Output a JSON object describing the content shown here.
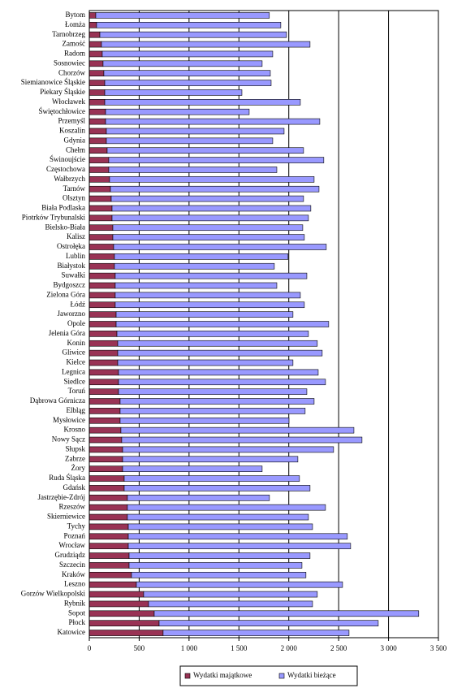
{
  "chart_data": {
    "type": "stacked-bar-horizontal",
    "categories": [
      "Bytom",
      "Łomża",
      "Tarnobrzeg",
      "Zamość",
      "Radom",
      "Sosnowiec",
      "Chorzów",
      "Siemianowice Śląskie",
      "Piekary Śląskie",
      "Włocławek",
      "Świętochłowice",
      "Przemyśl",
      "Koszalin",
      "Gdynia",
      "Chełm",
      "Świnoujście",
      "Częstochowa",
      "Wałbrzych",
      "Tarnów",
      "Olsztyn",
      "Biała Podlaska",
      "Piotrków Trybunalski",
      "Bielsko-Biała",
      "Kalisz",
      "Ostrołęka",
      "Lublin",
      "Białystok",
      "Suwałki",
      "Bydgoszcz",
      "Zielona Góra",
      "Łódź",
      "Jaworzno",
      "Opole",
      "Jelenia Góra",
      "Konin",
      "Gliwice",
      "Kielce",
      "Legnica",
      "Siedlce",
      "Toruń",
      "Dąbrowa Górnicza",
      "Elbląg",
      "Mysłowice",
      "Krosno",
      "Nowy Sącz",
      "Słupsk",
      "Zabrze",
      "Żory",
      "Ruda Śląska",
      "Gdańsk",
      "Jastrzębie-Zdrój",
      "Rzeszów",
      "Skierniewice",
      "Tychy",
      "Poznań",
      "Wrocław",
      "Grudziądz",
      "Szczecin",
      "Kraków",
      "Leszno",
      "Gorzów Wielkopolski",
      "Rybnik",
      "Sopot",
      "Płock",
      "Katowice"
    ],
    "series": [
      {
        "name": "Wydatki majątkowe",
        "color": "#993355",
        "values": [
          65,
          73,
          106,
          122,
          130,
          138,
          146,
          155,
          155,
          155,
          163,
          163,
          171,
          171,
          179,
          195,
          195,
          203,
          212,
          220,
          228,
          228,
          236,
          236,
          244,
          252,
          252,
          260,
          260,
          260,
          260,
          269,
          269,
          277,
          285,
          285,
          285,
          293,
          293,
          293,
          309,
          309,
          309,
          317,
          325,
          334,
          334,
          334,
          350,
          350,
          382,
          382,
          382,
          391,
          391,
          391,
          399,
          399,
          423,
          472,
          545,
          594,
          651,
          700,
          740
        ]
      },
      {
        "name": "Wydatki bieżące",
        "color": "#9999ff",
        "values": [
          1740,
          1847,
          1871,
          2091,
          1709,
          1595,
          1669,
          1668,
          1375,
          1961,
          1440,
          2148,
          1782,
          1668,
          1969,
          2156,
          1685,
          2051,
          2091,
          1928,
          1993,
          1969,
          1904,
          1920,
          2132,
          1741,
          1603,
          1921,
          1620,
          1856,
          1896,
          1773,
          2131,
          1920,
          2001,
          2050,
          1757,
          2002,
          2075,
          1888,
          1945,
          1855,
          1693,
          2336,
          2409,
          2115,
          1757,
          1399,
          1757,
          1863,
          1424,
          1986,
          1815,
          1847,
          2196,
          2229,
          1814,
          1733,
          1749,
          2067,
          1741,
          1644,
          2652,
          2197,
          1864
        ]
      }
    ],
    "xlim": [
      0,
      3500
    ],
    "xticks": [
      0,
      500,
      {
        "value": 1000,
        "label": "1 000"
      },
      {
        "value": 1500,
        "label": "1 500"
      },
      {
        "value": 2000,
        "label": "2 000"
      },
      {
        "value": 2500,
        "label": "2 500"
      },
      {
        "value": 3000,
        "label": "3 000"
      },
      {
        "value": 3500,
        "label": "3 500"
      }
    ],
    "grid": true,
    "legend": "bottom"
  }
}
